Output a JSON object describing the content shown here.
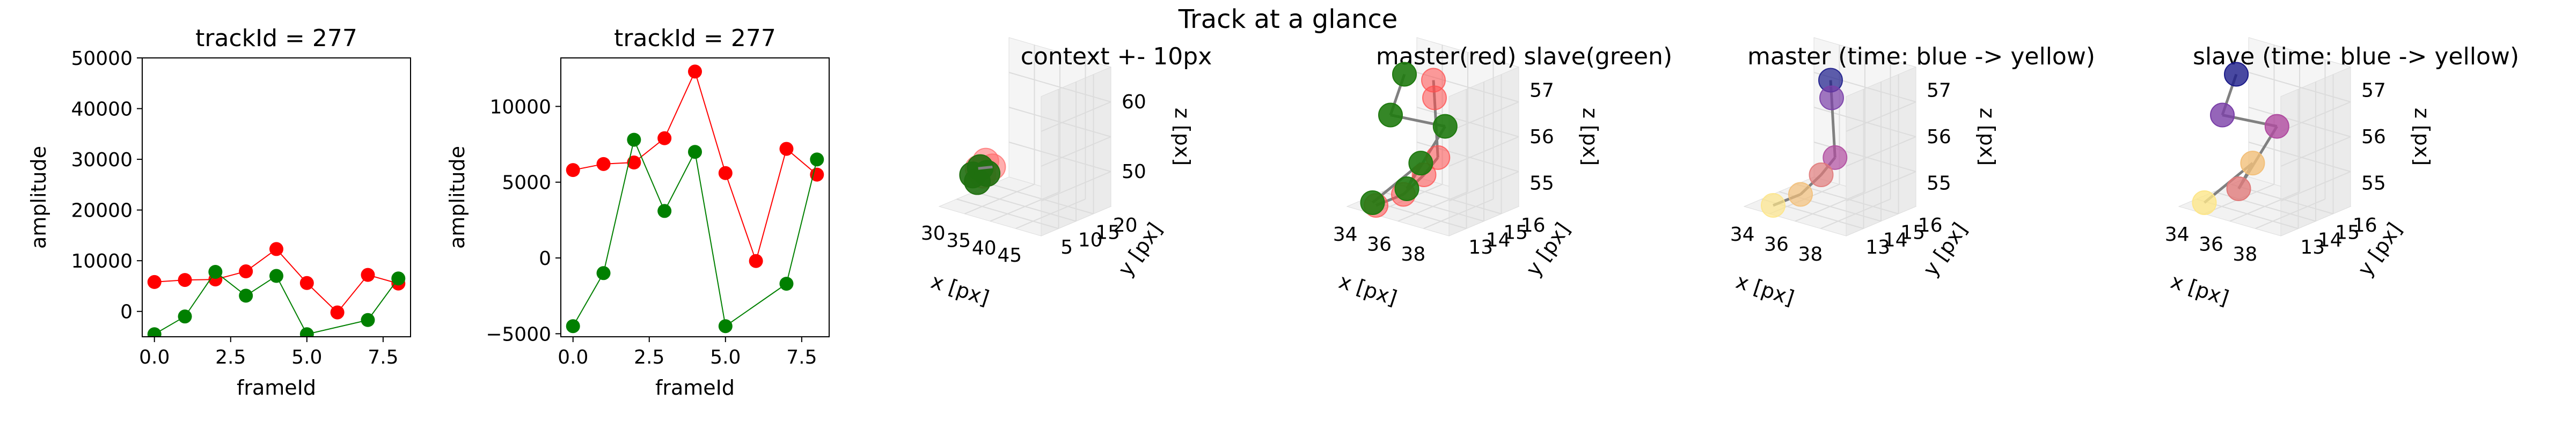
{
  "figure": {
    "suptitle": "Track at a glance"
  },
  "chart_data": [
    {
      "type": "line",
      "title": "trackId = 277",
      "xlabel": "frameId",
      "ylabel": "amplitude",
      "xlim": [
        -0.4,
        8.4
      ],
      "ylim": [
        -5000,
        50000
      ],
      "xticks": [
        "0.0",
        "2.5",
        "5.0",
        "7.5"
      ],
      "yticks": [
        "0",
        "10000",
        "20000",
        "30000",
        "40000",
        "50000"
      ],
      "series": [
        {
          "color": "#ff0000",
          "x": [
            0,
            1,
            2,
            3,
            4,
            5,
            6,
            7,
            8
          ],
          "y": [
            5800,
            6200,
            6300,
            7900,
            12300,
            5600,
            -200,
            7200,
            5500
          ]
        },
        {
          "color": "#008000",
          "x": [
            0,
            1,
            2,
            3,
            4,
            5,
            6,
            7,
            8
          ],
          "y": [
            -4500,
            -1000,
            7800,
            3100,
            7000,
            -4500,
            null,
            -1700,
            6500
          ]
        }
      ]
    },
    {
      "type": "line",
      "title": "trackId = 277",
      "xlabel": "frameId",
      "ylabel": "amplitude",
      "xlim": [
        -0.4,
        8.4
      ],
      "ylim": [
        -5200,
        13200
      ],
      "xticks": [
        "0.0",
        "2.5",
        "5.0",
        "7.5"
      ],
      "yticks": [
        "−5000",
        "0",
        "5000",
        "10000"
      ],
      "series": [
        {
          "color": "#ff0000",
          "x": [
            0,
            1,
            2,
            3,
            4,
            5,
            6,
            7,
            8
          ],
          "y": [
            5800,
            6200,
            6300,
            7900,
            12300,
            5600,
            -200,
            7200,
            5500
          ]
        },
        {
          "color": "#008000",
          "x": [
            0,
            1,
            2,
            3,
            4,
            5,
            6,
            7,
            8
          ],
          "y": [
            -4500,
            -1000,
            7800,
            3100,
            7000,
            -4500,
            null,
            -1700,
            6500
          ]
        }
      ]
    },
    {
      "type": "scatter3d",
      "title": "context +- 10px",
      "xlabel": "x [px]",
      "ylabel": "y [px]",
      "zlabel": "z [px]",
      "xticks": [
        "30",
        "35",
        "40",
        "45"
      ],
      "yticks": [
        "5",
        "10",
        "15",
        "20"
      ],
      "zticks": [
        "50",
        "60"
      ]
    },
    {
      "type": "scatter3d",
      "title": "master(red) slave(green)",
      "xlabel": "x [px]",
      "ylabel": "y [px]",
      "zlabel": "z [px]",
      "xticks": [
        "34",
        "36",
        "38"
      ],
      "yticks": [
        "13",
        "14",
        "15",
        "16"
      ],
      "zticks": [
        "55",
        "56",
        "57"
      ]
    },
    {
      "type": "scatter3d",
      "title": "master (time: blue -> yellow)",
      "xlabel": "x [px]",
      "ylabel": "y [px]",
      "zlabel": "z [px]",
      "xticks": [
        "34",
        "36",
        "38"
      ],
      "yticks": [
        "13",
        "14",
        "15",
        "16"
      ],
      "zticks": [
        "55",
        "56",
        "57"
      ]
    },
    {
      "type": "scatter3d",
      "title": "slave (time: blue -> yellow)",
      "xlabel": "x [px]",
      "ylabel": "y [px]",
      "zlabel": "z [px]",
      "xticks": [
        "34",
        "36",
        "38"
      ],
      "yticks": [
        "13",
        "14",
        "15",
        "16"
      ],
      "zticks": [
        "55",
        "56",
        "57"
      ]
    }
  ]
}
